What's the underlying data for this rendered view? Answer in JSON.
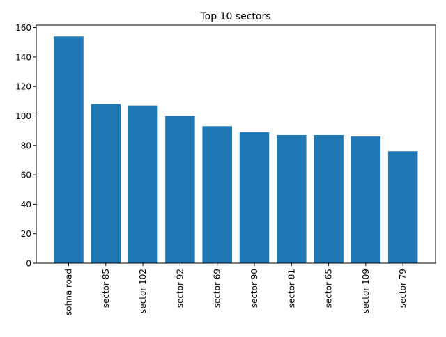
{
  "chart_data": {
    "type": "bar",
    "title": "Top 10 sectors",
    "xlabel": "",
    "ylabel": "",
    "categories": [
      "sohna road",
      "sector 85",
      "sector 102",
      "sector 92",
      "sector 69",
      "sector 90",
      "sector 81",
      "sector 65",
      "sector 109",
      "sector 79"
    ],
    "values": [
      154,
      108,
      107,
      100,
      93,
      89,
      87,
      87,
      86,
      76
    ],
    "ylim": [
      0,
      161.7
    ],
    "yticks": [
      0,
      20,
      40,
      60,
      80,
      100,
      120,
      140,
      160
    ],
    "grid": false,
    "legend": "none",
    "colors": {
      "bar": "#1f77b4",
      "axis": "#000000",
      "background": "#ffffff"
    }
  }
}
